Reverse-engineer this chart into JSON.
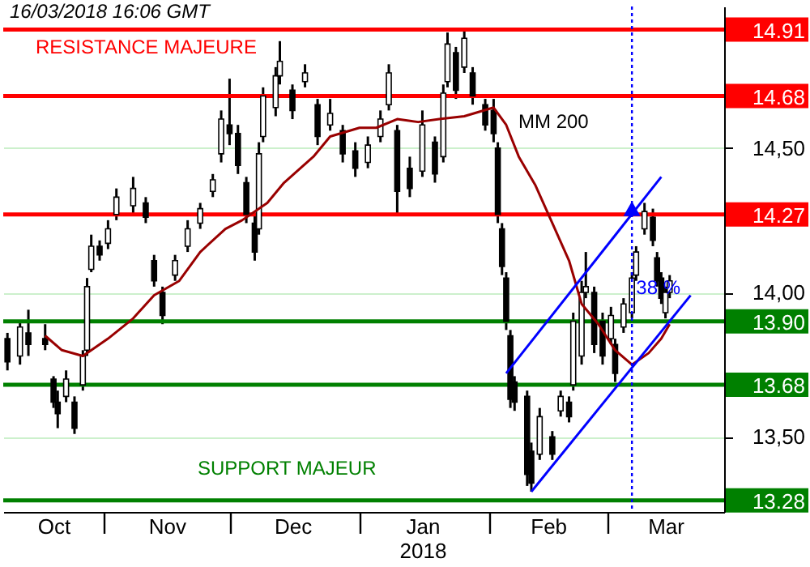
{
  "chart_data": {
    "type": "candlestick",
    "color": "#000000",
    "x": [
      "2017-10-09",
      "2017-10-12",
      "2017-10-14",
      "2017-10-18",
      "2017-10-20",
      "2017-10-21",
      "2017-10-23",
      "2017-10-25",
      "2017-10-27",
      "2017-10-28",
      "2017-10-29",
      "2017-10-31",
      "2017-11-02",
      "2017-11-04",
      "2017-11-08",
      "2017-11-11",
      "2017-11-13",
      "2017-11-15",
      "2017-11-18",
      "2017-11-21",
      "2017-11-24",
      "2017-11-27",
      "2017-11-29",
      "2017-12-01",
      "2017-12-03",
      "2017-12-05",
      "2017-12-07",
      "2017-12-08",
      "2017-12-09",
      "2017-12-12",
      "2017-12-13",
      "2017-12-16",
      "2017-12-19",
      "2017-12-22",
      "2017-12-25",
      "2017-12-28",
      "2017-12-31",
      "2018-01-03",
      "2018-01-06",
      "2018-01-08",
      "2018-01-10",
      "2018-01-13",
      "2018-01-16",
      "2018-01-19",
      "2018-01-21",
      "2018-01-22",
      "2018-01-24",
      "2018-01-26",
      "2018-01-28",
      "2018-01-31",
      "2018-02-02",
      "2018-02-03",
      "2018-02-04",
      "2018-02-05",
      "2018-02-06",
      "2018-02-07",
      "2018-02-10",
      "2018-02-11",
      "2018-02-13",
      "2018-02-16",
      "2018-02-18",
      "2018-02-20",
      "2018-02-21",
      "2018-02-23",
      "2018-02-24",
      "2018-02-26",
      "2018-02-28",
      "2018-03-02",
      "2018-03-03",
      "2018-03-05",
      "2018-03-07",
      "2018-03-08",
      "2018-03-10",
      "2018-03-12",
      "2018-03-13",
      "2018-03-14",
      "2018-03-15",
      "2018-03-16"
    ],
    "ohlc": [
      [
        13.84,
        13.86,
        13.73,
        13.76
      ],
      [
        13.78,
        13.9,
        13.75,
        13.88
      ],
      [
        13.86,
        13.94,
        13.78,
        13.82
      ],
      [
        13.84,
        13.89,
        13.8,
        13.82
      ],
      [
        13.7,
        13.71,
        13.6,
        13.62
      ],
      [
        13.62,
        13.66,
        13.53,
        13.58
      ],
      [
        13.64,
        13.73,
        13.62,
        13.7
      ],
      [
        13.62,
        13.64,
        13.51,
        13.53
      ],
      [
        13.68,
        13.8,
        13.66,
        13.78
      ],
      [
        13.8,
        14.05,
        13.78,
        14.02
      ],
      [
        14.08,
        14.2,
        14.07,
        14.16
      ],
      [
        14.16,
        14.18,
        14.11,
        14.13
      ],
      [
        14.17,
        14.25,
        14.15,
        14.22
      ],
      [
        14.27,
        14.36,
        14.25,
        14.33
      ],
      [
        14.3,
        14.4,
        14.27,
        14.36
      ],
      [
        14.31,
        14.33,
        14.24,
        14.26
      ],
      [
        14.11,
        14.13,
        14.02,
        14.04
      ],
      [
        14.0,
        14.02,
        13.89,
        13.92
      ],
      [
        14.06,
        14.13,
        14.04,
        14.11
      ],
      [
        14.16,
        14.25,
        14.14,
        14.22
      ],
      [
        14.24,
        14.31,
        14.22,
        14.29
      ],
      [
        14.35,
        14.41,
        14.33,
        14.39
      ],
      [
        14.48,
        14.63,
        14.45,
        14.6
      ],
      [
        14.58,
        14.74,
        14.51,
        14.55
      ],
      [
        14.55,
        14.58,
        14.41,
        14.44
      ],
      [
        14.38,
        14.4,
        14.24,
        14.27
      ],
      [
        14.24,
        14.27,
        14.11,
        14.14
      ],
      [
        14.22,
        14.52,
        14.2,
        14.48
      ],
      [
        14.54,
        14.71,
        14.52,
        14.68
      ],
      [
        14.64,
        14.78,
        14.61,
        14.75
      ],
      [
        14.75,
        14.87,
        14.72,
        14.8
      ],
      [
        14.7,
        14.72,
        14.6,
        14.63
      ],
      [
        14.73,
        14.79,
        14.71,
        14.76
      ],
      [
        14.65,
        14.67,
        14.51,
        14.54
      ],
      [
        14.58,
        14.67,
        14.56,
        14.62
      ],
      [
        14.56,
        14.58,
        14.45,
        14.48
      ],
      [
        14.49,
        14.52,
        14.4,
        14.43
      ],
      [
        14.45,
        14.54,
        14.43,
        14.51
      ],
      [
        14.54,
        14.63,
        14.52,
        14.6
      ],
      [
        14.65,
        14.79,
        14.63,
        14.76
      ],
      [
        14.56,
        14.58,
        14.27,
        14.35
      ],
      [
        14.43,
        14.47,
        14.33,
        14.36
      ],
      [
        14.42,
        14.63,
        14.4,
        14.58
      ],
      [
        14.52,
        14.54,
        14.38,
        14.41
      ],
      [
        14.47,
        14.72,
        14.45,
        14.69
      ],
      [
        14.73,
        14.9,
        14.71,
        14.86
      ],
      [
        14.83,
        14.85,
        14.67,
        14.7
      ],
      [
        14.78,
        14.91,
        14.76,
        14.88
      ],
      [
        14.76,
        14.78,
        14.65,
        14.68
      ],
      [
        14.65,
        14.67,
        14.56,
        14.58
      ],
      [
        14.63,
        14.67,
        14.52,
        14.55
      ],
      [
        14.5,
        14.52,
        14.24,
        14.27
      ],
      [
        14.22,
        14.24,
        14.06,
        14.09
      ],
      [
        14.05,
        14.07,
        13.87,
        13.9
      ],
      [
        13.85,
        13.87,
        13.6,
        13.63
      ],
      [
        13.69,
        13.71,
        13.59,
        13.62
      ],
      [
        13.64,
        13.66,
        13.33,
        13.37
      ],
      [
        13.45,
        13.48,
        13.31,
        13.34
      ],
      [
        13.44,
        13.6,
        13.42,
        13.57
      ],
      [
        13.5,
        13.52,
        13.42,
        13.44
      ],
      [
        13.59,
        13.66,
        13.57,
        13.64
      ],
      [
        13.62,
        13.64,
        13.55,
        13.57
      ],
      [
        13.68,
        13.93,
        13.66,
        13.9
      ],
      [
        13.78,
        14.04,
        13.75,
        14.0
      ],
      [
        14.0,
        14.14,
        13.98,
        14.02
      ],
      [
        14.0,
        14.02,
        13.79,
        13.82
      ],
      [
        13.9,
        13.93,
        13.75,
        13.78
      ],
      [
        13.84,
        13.95,
        13.82,
        13.92
      ],
      [
        13.82,
        13.84,
        13.69,
        13.72
      ],
      [
        13.88,
        13.98,
        13.86,
        13.96
      ],
      [
        13.93,
        14.07,
        13.91,
        14.05
      ],
      [
        14.06,
        14.16,
        14.04,
        14.14
      ],
      [
        14.22,
        14.31,
        14.2,
        14.28
      ],
      [
        14.26,
        14.29,
        14.16,
        14.18
      ],
      [
        14.12,
        14.14,
        14.02,
        14.04
      ],
      [
        14.05,
        14.07,
        13.96,
        13.98
      ],
      [
        13.93,
        14.02,
        13.91,
        14.0
      ],
      [
        14.0,
        14.06,
        13.98,
        14.04
      ]
    ],
    "series": [
      {
        "type": "line",
        "color": "#990000",
        "x": [
          "2017-10-18",
          "2017-10-22",
          "2017-10-27",
          "2017-11-02",
          "2017-11-08",
          "2017-11-13",
          "2017-11-19",
          "2017-11-24",
          "2017-11-30",
          "2017-12-04",
          "2017-12-10",
          "2017-12-14",
          "2017-12-21",
          "2017-12-25",
          "2018-01-01",
          "2018-01-05",
          "2018-01-10",
          "2018-01-15",
          "2018-01-20",
          "2018-01-26",
          "2018-02-02",
          "2018-02-05",
          "2018-02-08",
          "2018-02-12",
          "2018-02-16",
          "2018-02-20",
          "2018-02-23",
          "2018-02-27",
          "2018-03-03",
          "2018-03-07",
          "2018-03-11",
          "2018-03-14",
          "2018-03-16"
        ],
        "values": [
          13.85,
          13.8,
          13.78,
          13.84,
          13.91,
          13.99,
          14.04,
          14.14,
          14.22,
          14.25,
          14.31,
          14.38,
          14.47,
          14.54,
          14.57,
          14.57,
          14.6,
          14.59,
          14.6,
          14.61,
          14.64,
          14.58,
          14.47,
          14.37,
          14.24,
          14.11,
          13.96,
          13.89,
          13.8,
          13.75,
          13.79,
          13.84,
          13.89
        ]
      },
      {
        "type": "line",
        "color": "#0000ff",
        "x": [
          "2018-02-05",
          "2018-03-14"
        ],
        "values": [
          13.72,
          14.4
        ]
      },
      {
        "type": "line",
        "color": "#0000ff",
        "x": [
          "2018-02-11",
          "2018-03-21"
        ],
        "values": [
          13.31,
          13.99
        ]
      },
      {
        "type": "scatter",
        "color": "#0000ff",
        "marker": "triangle",
        "x": [
          "2018-03-07"
        ],
        "values": [
          14.29
        ]
      }
    ],
    "xlim": [
      "2017-10-08",
      "2018-03-29"
    ],
    "xticks": [
      {
        "value": "2017-10-20",
        "label": "Oct"
      },
      {
        "value": "2017-11-01",
        "label": null
      },
      {
        "value": "2017-11-16",
        "label": "Nov"
      },
      {
        "value": "2017-12-01",
        "label": null
      },
      {
        "value": "2017-12-16",
        "label": "Dec"
      },
      {
        "value": "2018-01-01",
        "label": null
      },
      {
        "value": "2018-01-16",
        "label": "Jan\n2018"
      },
      {
        "value": "2018-02-01",
        "label": null
      },
      {
        "value": "2018-02-15",
        "label": "Feb"
      },
      {
        "value": "2018-03-01",
        "label": null
      },
      {
        "value": "2018-03-15",
        "label": "Mar"
      }
    ],
    "ylim": [
      13.24,
      14.99
    ],
    "yticks": [
      {
        "value": 13.5,
        "label": "13,50"
      },
      {
        "value": 14.0,
        "label": "14,00"
      },
      {
        "value": 14.5,
        "label": "14,50"
      }
    ],
    "grid": "y",
    "ref_lines": [
      {
        "axis": "y",
        "value": 14.91,
        "label": "14.91",
        "color": "#ff0000"
      },
      {
        "axis": "y",
        "value": 14.68,
        "label": "14.68",
        "color": "#ff0000"
      },
      {
        "axis": "y",
        "value": 14.27,
        "label": "14.27",
        "color": "#ff0000"
      },
      {
        "axis": "y",
        "value": 13.9,
        "label": "13.90",
        "color": "#008000"
      },
      {
        "axis": "y",
        "value": 13.68,
        "label": "13.68",
        "color": "#008000"
      },
      {
        "axis": "y",
        "value": 13.28,
        "label": "13.28",
        "color": "#008000"
      },
      {
        "axis": "x",
        "value": "2018-03-07",
        "color": "#0000ff",
        "line_style": "dotted"
      }
    ],
    "annotations": [
      "16/03/2018  16:06 GMT",
      "RESISTANCE MAJEURE",
      "SUPPORT MAJEUR",
      "MM 200",
      {
        "text": "38 %",
        "x": "2018-03-08",
        "y": 13.91
      }
    ]
  }
}
